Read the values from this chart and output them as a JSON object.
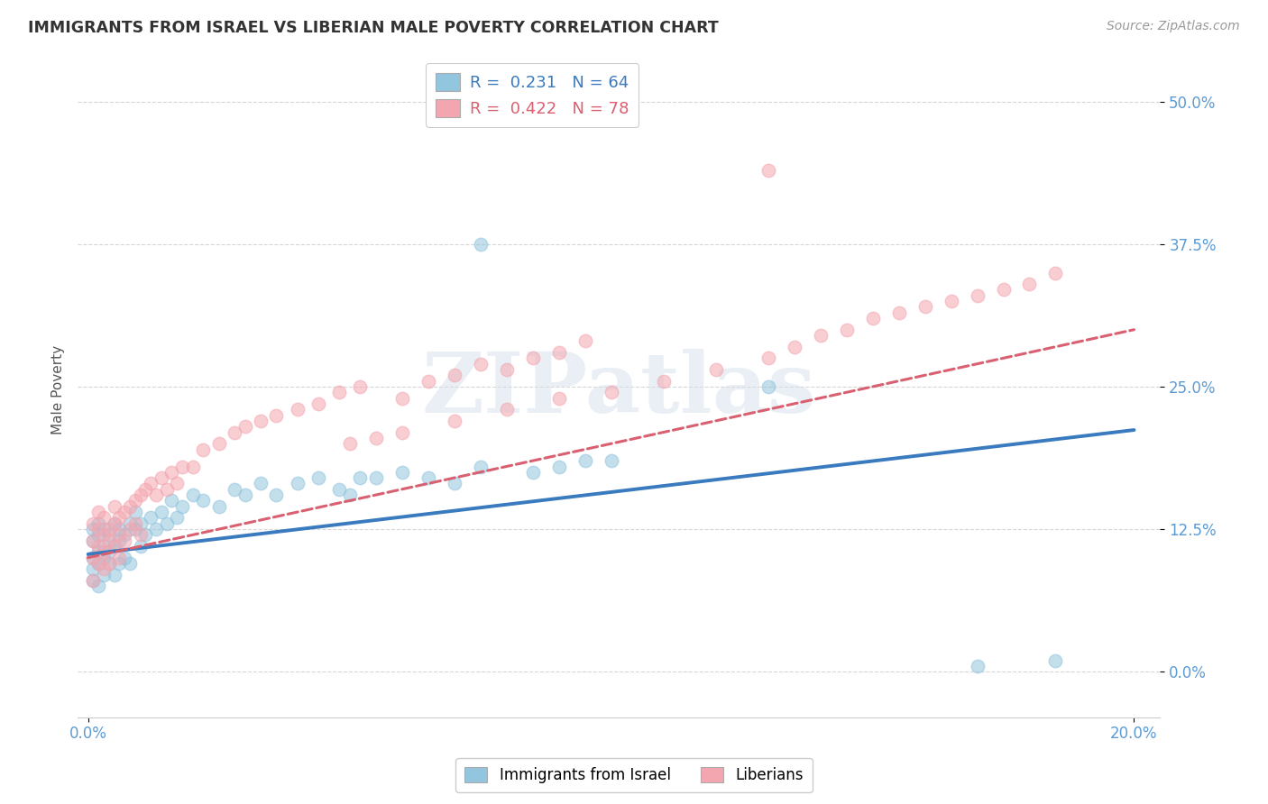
{
  "title": "IMMIGRANTS FROM ISRAEL VS LIBERIAN MALE POVERTY CORRELATION CHART",
  "source": "Source: ZipAtlas.com",
  "ylabel": "Male Poverty",
  "ytick_vals": [
    0.0,
    0.125,
    0.25,
    0.375,
    0.5
  ],
  "ytick_labels": [
    "0.0%",
    "12.5%",
    "25.0%",
    "37.5%",
    "50.0%"
  ],
  "xtick_vals": [
    0.0,
    0.2
  ],
  "xtick_labels": [
    "0.0%",
    "20.0%"
  ],
  "xlim": [
    -0.002,
    0.205
  ],
  "ylim": [
    -0.04,
    0.535
  ],
  "r_israel": 0.231,
  "n_israel": 64,
  "r_liberian": 0.422,
  "n_liberian": 78,
  "legend_label_1": "Immigrants from Israel",
  "legend_label_2": "Liberians",
  "color_israel": "#92c5de",
  "color_liberian": "#f4a6b0",
  "line_color_israel": "#3a7abf",
  "line_color_liberian": "#d96070",
  "watermark": "ZIPatlas",
  "background_color": "#ffffff",
  "grid_color": "#cccccc",
  "title_color": "#333333",
  "axis_tick_color": "#5b9bd5",
  "israel_x": [
    0.001,
    0.001,
    0.001,
    0.001,
    0.001,
    0.002,
    0.002,
    0.002,
    0.002,
    0.002,
    0.003,
    0.003,
    0.003,
    0.003,
    0.004,
    0.004,
    0.004,
    0.005,
    0.005,
    0.005,
    0.006,
    0.006,
    0.006,
    0.007,
    0.007,
    0.008,
    0.008,
    0.009,
    0.009,
    0.01,
    0.01,
    0.011,
    0.012,
    0.013,
    0.014,
    0.015,
    0.016,
    0.017,
    0.018,
    0.02,
    0.022,
    0.025,
    0.028,
    0.03,
    0.033,
    0.036,
    0.04,
    0.044,
    0.048,
    0.052,
    0.06,
    0.065,
    0.07,
    0.075,
    0.05,
    0.055,
    0.085,
    0.09,
    0.095,
    0.1,
    0.17,
    0.185,
    0.075,
    0.13
  ],
  "israel_y": [
    0.09,
    0.1,
    0.115,
    0.125,
    0.08,
    0.095,
    0.105,
    0.12,
    0.13,
    0.075,
    0.1,
    0.11,
    0.125,
    0.085,
    0.105,
    0.12,
    0.095,
    0.11,
    0.13,
    0.085,
    0.115,
    0.125,
    0.095,
    0.12,
    0.1,
    0.13,
    0.095,
    0.125,
    0.14,
    0.11,
    0.13,
    0.12,
    0.135,
    0.125,
    0.14,
    0.13,
    0.15,
    0.135,
    0.145,
    0.155,
    0.15,
    0.145,
    0.16,
    0.155,
    0.165,
    0.155,
    0.165,
    0.17,
    0.16,
    0.17,
    0.175,
    0.17,
    0.165,
    0.18,
    0.155,
    0.17,
    0.175,
    0.18,
    0.185,
    0.185,
    0.005,
    0.01,
    0.375,
    0.25
  ],
  "liberian_x": [
    0.001,
    0.001,
    0.001,
    0.001,
    0.002,
    0.002,
    0.002,
    0.002,
    0.003,
    0.003,
    0.003,
    0.003,
    0.004,
    0.004,
    0.004,
    0.005,
    0.005,
    0.005,
    0.006,
    0.006,
    0.006,
    0.007,
    0.007,
    0.008,
    0.008,
    0.009,
    0.009,
    0.01,
    0.01,
    0.011,
    0.012,
    0.013,
    0.014,
    0.015,
    0.016,
    0.017,
    0.018,
    0.02,
    0.022,
    0.025,
    0.028,
    0.03,
    0.033,
    0.036,
    0.04,
    0.044,
    0.048,
    0.052,
    0.06,
    0.065,
    0.07,
    0.075,
    0.08,
    0.085,
    0.09,
    0.095,
    0.05,
    0.055,
    0.06,
    0.07,
    0.08,
    0.09,
    0.1,
    0.11,
    0.12,
    0.13,
    0.135,
    0.14,
    0.145,
    0.15,
    0.155,
    0.16,
    0.165,
    0.17,
    0.175,
    0.18,
    0.185,
    0.13
  ],
  "liberian_y": [
    0.1,
    0.115,
    0.13,
    0.08,
    0.11,
    0.125,
    0.095,
    0.14,
    0.105,
    0.12,
    0.09,
    0.135,
    0.115,
    0.125,
    0.095,
    0.13,
    0.11,
    0.145,
    0.12,
    0.135,
    0.1,
    0.14,
    0.115,
    0.145,
    0.125,
    0.15,
    0.13,
    0.155,
    0.12,
    0.16,
    0.165,
    0.155,
    0.17,
    0.16,
    0.175,
    0.165,
    0.18,
    0.18,
    0.195,
    0.2,
    0.21,
    0.215,
    0.22,
    0.225,
    0.23,
    0.235,
    0.245,
    0.25,
    0.24,
    0.255,
    0.26,
    0.27,
    0.265,
    0.275,
    0.28,
    0.29,
    0.2,
    0.205,
    0.21,
    0.22,
    0.23,
    0.24,
    0.245,
    0.255,
    0.265,
    0.275,
    0.285,
    0.295,
    0.3,
    0.31,
    0.315,
    0.32,
    0.325,
    0.33,
    0.335,
    0.34,
    0.35,
    0.44
  ]
}
